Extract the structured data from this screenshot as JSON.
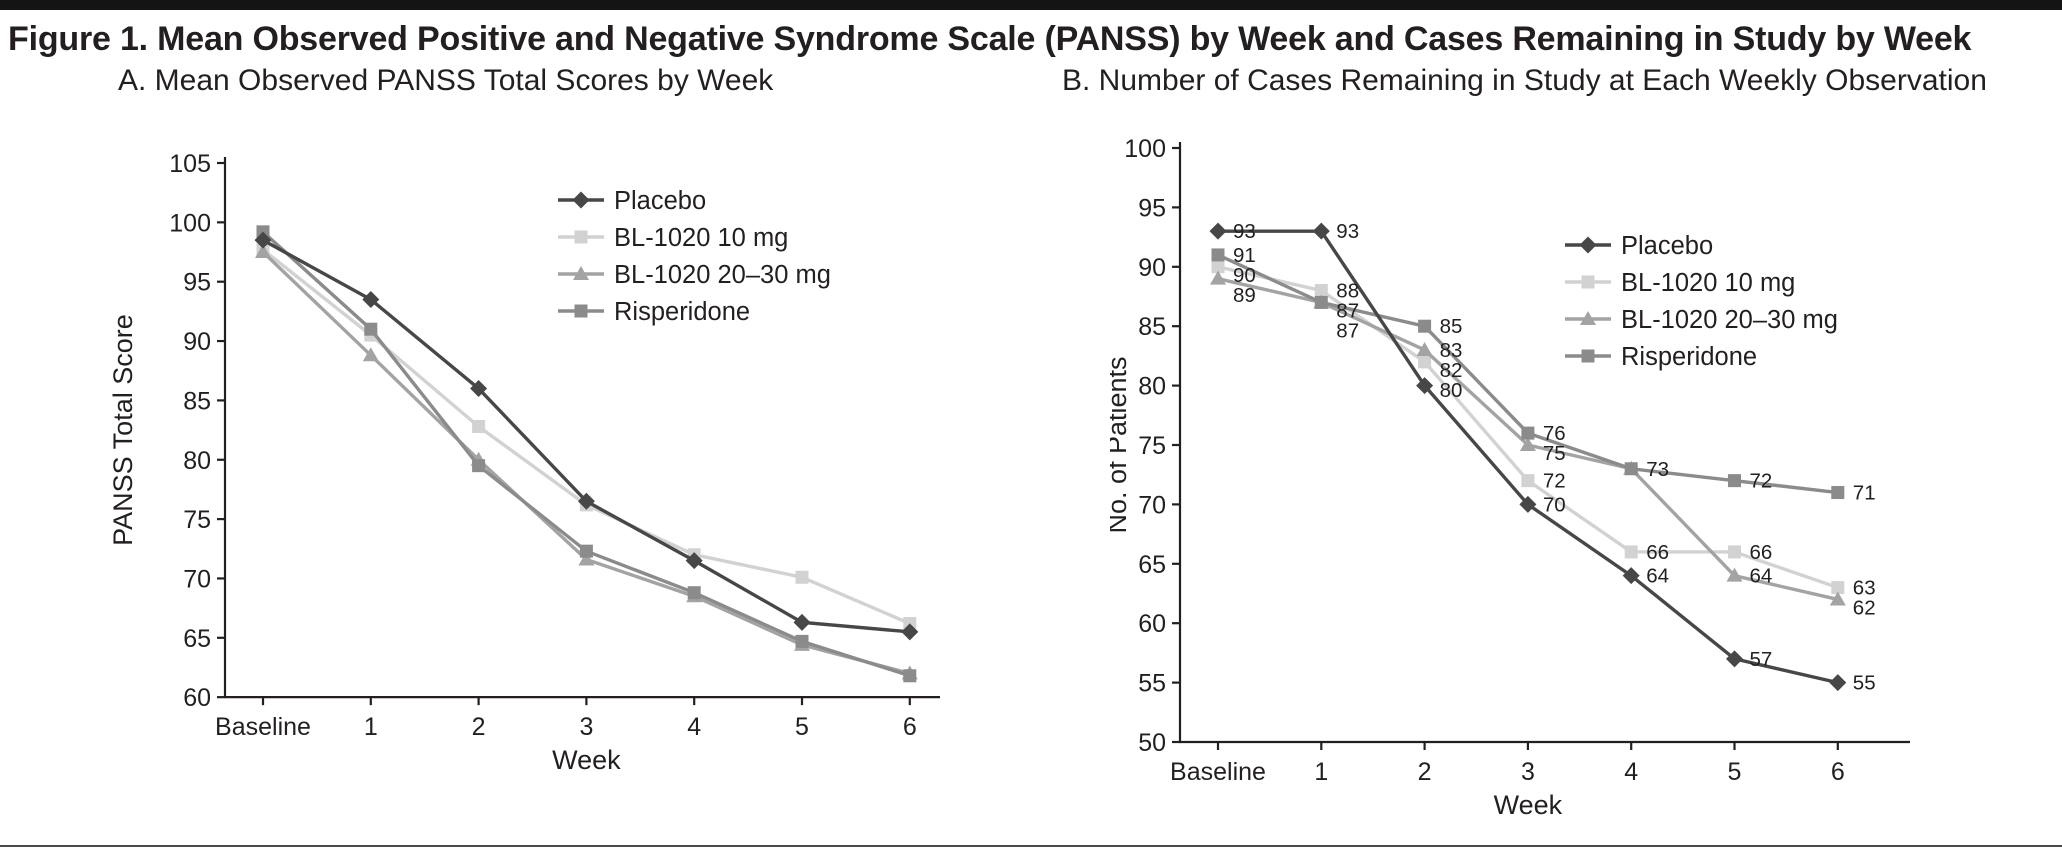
{
  "figure": {
    "title": "Figure 1. Mean Observed Positive and Negative Syndrome Scale (PANSS) by Week and Cases Remaining in Study by Week",
    "text_color": "#231f20",
    "rule_color": "#141414"
  },
  "panels": [
    {
      "id": "A",
      "title": "A. Mean Observed PANSS Total Scores by Week"
    },
    {
      "id": "B",
      "title": "B. Number of Cases Remaining in Study at Each Weekly Observation"
    }
  ],
  "chart_data": [
    {
      "type": "line",
      "panel": "A",
      "title": "A. Mean Observed PANSS Total Scores by Week",
      "categories": [
        "Baseline",
        "1",
        "2",
        "3",
        "4",
        "5",
        "6"
      ],
      "xlabel": "Week",
      "ylabel": "PANSS Total Score",
      "ylim": [
        60,
        105
      ],
      "ytick_step": 5,
      "grid": false,
      "legend_position": "inside-top-right",
      "series": [
        {
          "name": "Placebo",
          "marker": "diamond",
          "color": "#474747",
          "values": [
            98.5,
            93.5,
            86.0,
            76.5,
            71.5,
            66.3,
            65.5
          ]
        },
        {
          "name": "BL-1020 10 mg",
          "marker": "square",
          "color": "#d2d2d2",
          "values": [
            97.7,
            90.5,
            82.8,
            76.2,
            72.0,
            70.1,
            66.2
          ]
        },
        {
          "name": "BL-1020 20–30 mg",
          "marker": "triangle",
          "color": "#a3a3a3",
          "values": [
            97.5,
            88.8,
            80.0,
            71.6,
            68.5,
            64.4,
            62.0
          ]
        },
        {
          "name": "Risperidone",
          "marker": "square",
          "color": "#8b8b8b",
          "values": [
            99.2,
            91.0,
            79.5,
            72.3,
            68.8,
            64.7,
            61.8
          ]
        }
      ]
    },
    {
      "type": "line",
      "panel": "B",
      "title": "B. Number of Cases Remaining in Study at Each Weekly Observation",
      "categories": [
        "Baseline",
        "1",
        "2",
        "3",
        "4",
        "5",
        "6"
      ],
      "xlabel": "Week",
      "ylabel": "No. of Patients",
      "ylim": [
        50,
        100
      ],
      "ytick_step": 5,
      "grid": false,
      "legend_position": "inside-right",
      "series": [
        {
          "name": "Placebo",
          "marker": "diamond",
          "color": "#474747",
          "values": [
            93,
            93,
            80,
            70,
            64,
            57,
            55
          ],
          "labels": [
            93,
            93,
            80,
            70,
            64,
            57,
            55
          ]
        },
        {
          "name": "BL-1020 10 mg",
          "marker": "square",
          "color": "#d2d2d2",
          "values": [
            90,
            88,
            82,
            72,
            66,
            66,
            63
          ],
          "labels": [
            90,
            88,
            82,
            72,
            66,
            66,
            63
          ]
        },
        {
          "name": "BL-1020 20–30 mg",
          "marker": "triangle",
          "color": "#a3a3a3",
          "values": [
            89,
            87,
            83,
            75,
            73,
            64,
            62
          ],
          "labels": [
            89,
            87,
            83,
            75,
            null,
            64,
            62
          ]
        },
        {
          "name": "Risperidone",
          "marker": "square",
          "color": "#8b8b8b",
          "values": [
            91,
            87,
            85,
            76,
            73,
            72,
            71
          ],
          "labels": [
            91,
            87,
            85,
            76,
            73,
            72,
            71
          ]
        }
      ]
    }
  ]
}
